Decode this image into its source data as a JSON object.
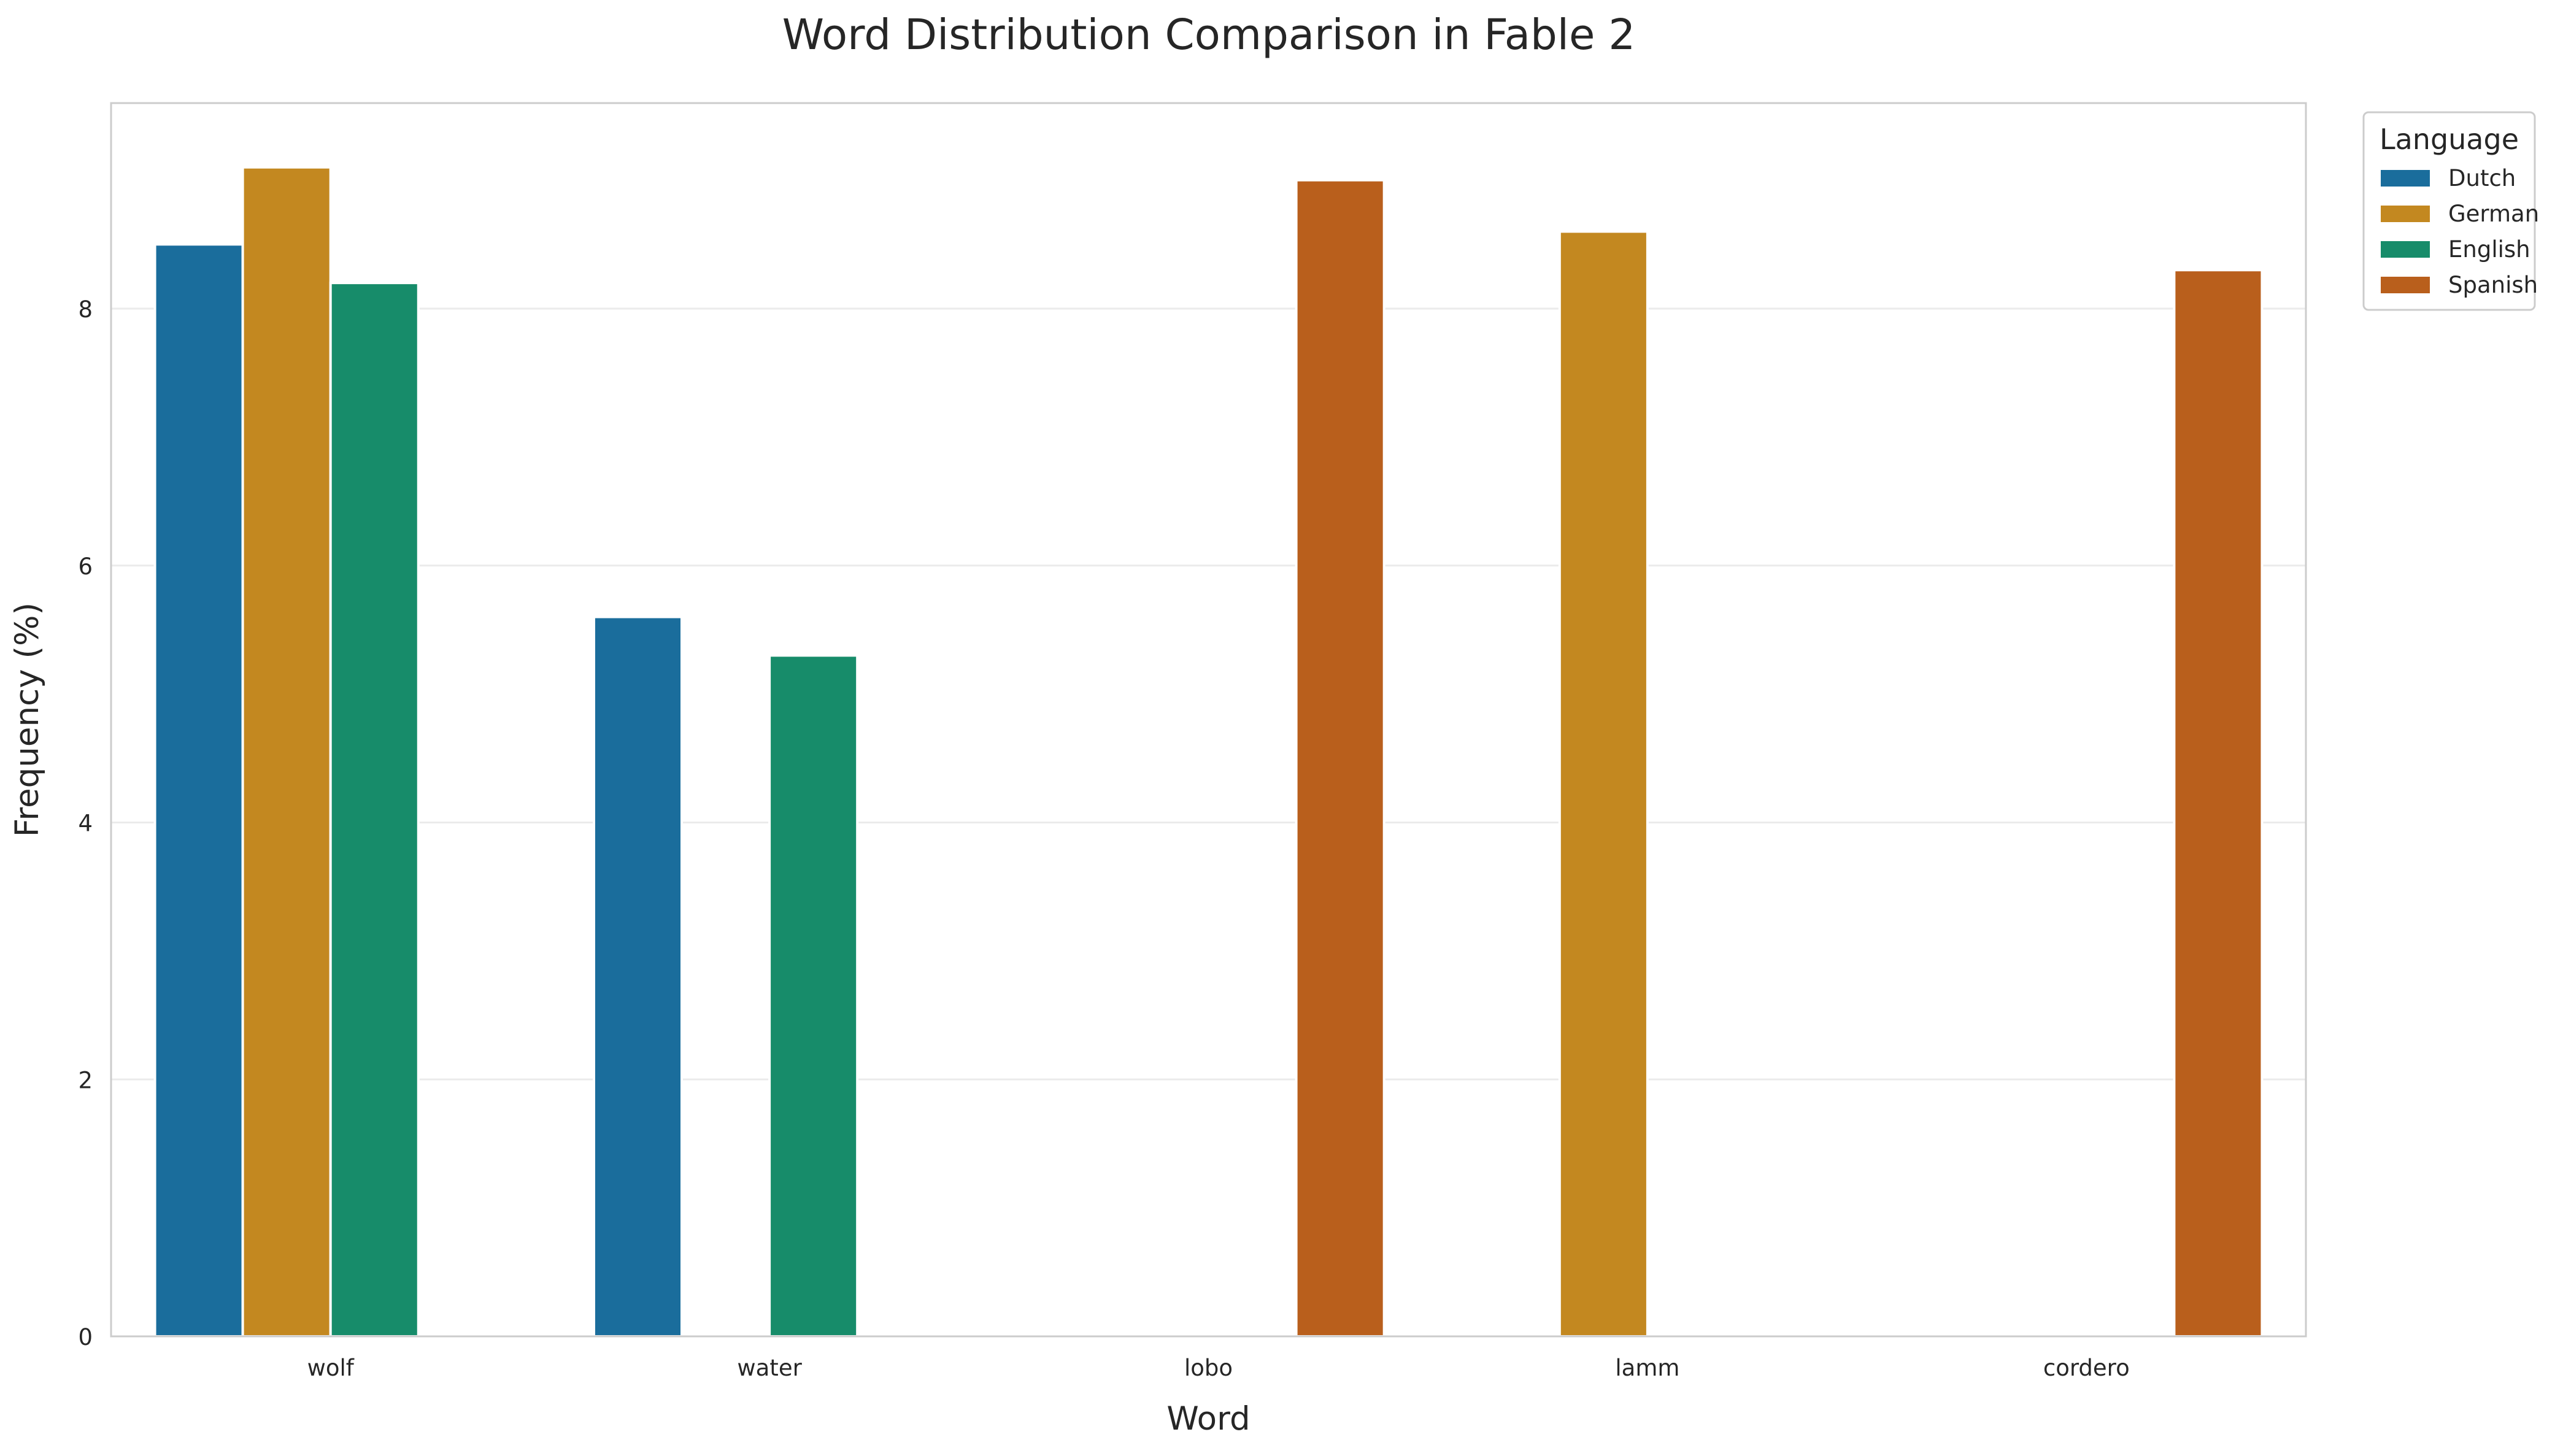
{
  "chart_data": {
    "type": "bar",
    "title": "Word Distribution Comparison in Fable 2",
    "xlabel": "Word",
    "ylabel": "Frequency (%)",
    "categories": [
      "wolf",
      "water",
      "lobo",
      "lamm",
      "cordero"
    ],
    "series": [
      {
        "name": "Dutch",
        "color": "#1a6d9c",
        "values": [
          8.5,
          5.6,
          null,
          null,
          null
        ]
      },
      {
        "name": "German",
        "color": "#c38820",
        "values": [
          9.1,
          null,
          null,
          8.6,
          null
        ]
      },
      {
        "name": "English",
        "color": "#178c6a",
        "values": [
          8.2,
          5.3,
          null,
          null,
          null
        ]
      },
      {
        "name": "Spanish",
        "color": "#b95f1c",
        "values": [
          null,
          null,
          9.0,
          null,
          8.3
        ]
      }
    ],
    "ylim": [
      0,
      9.6
    ],
    "yticks": [
      0,
      2,
      4,
      6,
      8
    ],
    "grid": true,
    "legend": {
      "title": "Language",
      "placement": "upper-right-outside"
    }
  }
}
